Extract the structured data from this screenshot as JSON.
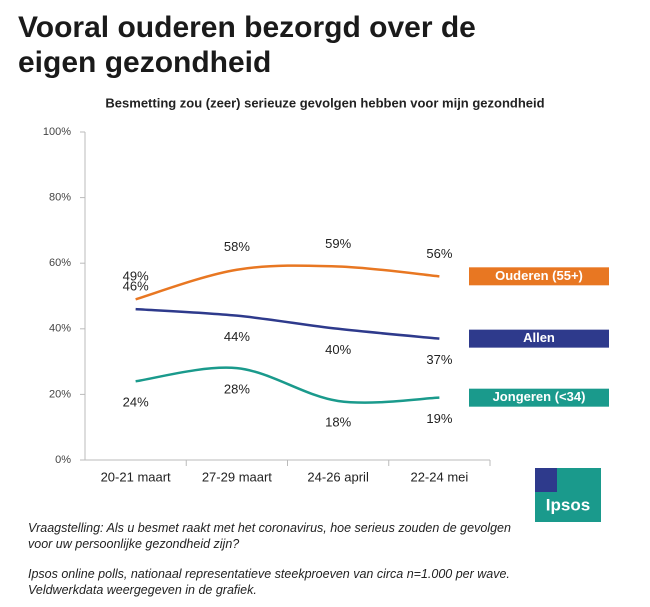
{
  "chart_data": {
    "type": "line",
    "title": "Vooral ouderen bezorgd over de eigen gezondheid",
    "subtitle": "Besmetting zou (zeer) serieuze gevolgen hebben voor mijn gezondheid",
    "categories": [
      "20-21 maart",
      "27-29 maart",
      "24-26 april",
      "22-24 mei"
    ],
    "series": [
      {
        "name": "Ouderen (55+)",
        "color": "#e87722",
        "values": [
          49,
          58,
          59,
          56
        ],
        "value_labels": [
          "49%",
          "58%",
          "59%",
          "56%"
        ]
      },
      {
        "name": "Allen",
        "color": "#2e3a8c",
        "values": [
          46,
          44,
          40,
          37
        ],
        "value_labels": [
          "46%",
          "44%",
          "40%",
          "37%"
        ]
      },
      {
        "name": "Jongeren (<34)",
        "color": "#1a9a8c",
        "values": [
          24,
          28,
          18,
          19
        ],
        "value_labels": [
          "24%",
          "28%",
          "18%",
          "19%"
        ]
      }
    ],
    "ylim": [
      0,
      100
    ],
    "yticks": [
      {
        "value": 0,
        "label": "0%"
      },
      {
        "value": 20,
        "label": "20%"
      },
      {
        "value": 40,
        "label": "40%"
      },
      {
        "value": 60,
        "label": "60%"
      },
      {
        "value": 80,
        "label": "80%"
      },
      {
        "value": 100,
        "label": "100%"
      }
    ],
    "grid": false
  },
  "footnotes": [
    "Vraagstelling: Als u besmet raakt met het coronavirus, hoe serieus zouden de gevolgen voor uw persoonlijke gezondheid zijn?",
    "Ipsos online polls, nationaal representatieve steekproeven van circa n=1.000 per wave. Veldwerkdata weergegeven  in de grafiek."
  ],
  "logo": "Ipsos"
}
